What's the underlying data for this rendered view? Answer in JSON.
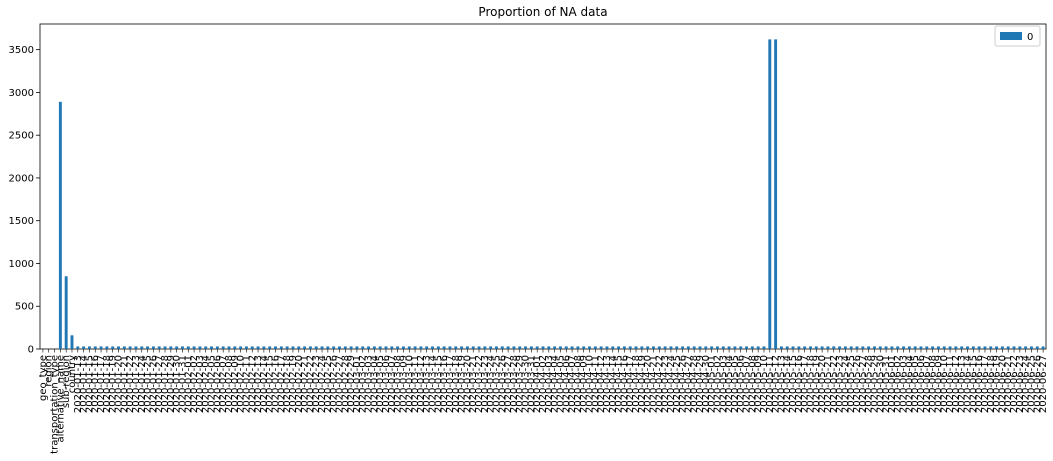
{
  "chart_data": {
    "type": "bar",
    "title": "Proportion of NA data",
    "xlabel": "",
    "ylabel": "",
    "ylim": [
      0,
      3800
    ],
    "yticks": [
      0,
      500,
      1000,
      1500,
      2000,
      2500,
      3000,
      3500
    ],
    "legend_position": "top-right",
    "grid": false,
    "bar_color": "#1f77b4",
    "series": [
      {
        "name": "0",
        "color": "#1f77b4"
      }
    ],
    "categories": [
      "geo_type",
      "region",
      "transportation_type",
      "alternative_name",
      "sub-region",
      "country",
      "2020-01-13",
      "2020-01-14",
      "2020-01-15",
      "2020-01-16",
      "2020-01-17",
      "2020-01-18",
      "2020-01-19",
      "2020-01-20",
      "2020-01-21",
      "2020-01-22",
      "2020-01-23",
      "2020-01-24",
      "2020-01-25",
      "2020-01-26",
      "2020-01-27",
      "2020-01-28",
      "2020-01-29",
      "2020-01-30",
      "2020-01-31",
      "2020-02-01",
      "2020-02-02",
      "2020-02-03",
      "2020-02-04",
      "2020-02-05",
      "2020-02-06",
      "2020-02-07",
      "2020-02-08",
      "2020-02-09",
      "2020-02-10",
      "2020-02-11",
      "2020-02-12",
      "2020-02-13",
      "2020-02-14",
      "2020-02-15",
      "2020-02-16",
      "2020-02-17",
      "2020-02-18",
      "2020-02-19",
      "2020-02-20",
      "2020-02-21",
      "2020-02-22",
      "2020-02-23",
      "2020-02-24",
      "2020-02-25",
      "2020-02-26",
      "2020-02-27",
      "2020-02-28",
      "2020-02-29",
      "2020-03-01",
      "2020-03-02",
      "2020-03-03",
      "2020-03-04",
      "2020-03-05",
      "2020-03-06",
      "2020-03-07",
      "2020-03-08",
      "2020-03-09",
      "2020-03-10",
      "2020-03-11",
      "2020-03-12",
      "2020-03-13",
      "2020-03-14",
      "2020-03-15",
      "2020-03-16",
      "2020-03-17",
      "2020-03-18",
      "2020-03-19",
      "2020-03-20",
      "2020-03-21",
      "2020-03-22",
      "2020-03-23",
      "2020-03-24",
      "2020-03-25",
      "2020-03-26",
      "2020-03-27",
      "2020-03-28",
      "2020-03-29",
      "2020-03-30",
      "2020-03-31",
      "2020-04-01",
      "2020-04-02",
      "2020-04-03",
      "2020-04-04",
      "2020-04-05",
      "2020-04-06",
      "2020-04-07",
      "2020-04-08",
      "2020-04-09",
      "2020-04-10",
      "2020-04-11",
      "2020-04-12",
      "2020-04-13",
      "2020-04-14",
      "2020-04-15",
      "2020-04-16",
      "2020-04-17",
      "2020-04-18",
      "2020-04-19",
      "2020-04-20",
      "2020-04-21",
      "2020-04-22",
      "2020-04-23",
      "2020-04-24",
      "2020-04-25",
      "2020-04-26",
      "2020-04-27",
      "2020-04-28",
      "2020-04-29",
      "2020-04-30",
      "2020-05-01",
      "2020-05-02",
      "2020-05-03",
      "2020-05-04",
      "2020-05-05",
      "2020-05-06",
      "2020-05-07",
      "2020-05-08",
      "2020-05-09",
      "2020-05-10",
      "2020-05-11",
      "2020-05-12",
      "2020-05-13",
      "2020-05-14",
      "2020-05-15",
      "2020-05-16",
      "2020-05-17",
      "2020-05-18",
      "2020-05-19",
      "2020-05-20",
      "2020-05-21",
      "2020-05-22",
      "2020-05-23",
      "2020-05-24",
      "2020-05-25",
      "2020-05-26",
      "2020-05-27",
      "2020-05-28",
      "2020-05-29",
      "2020-05-30",
      "2020-05-31",
      "2020-06-01",
      "2020-06-02",
      "2020-06-03",
      "2020-06-04",
      "2020-06-05",
      "2020-06-06",
      "2020-06-07",
      "2020-06-08",
      "2020-06-09",
      "2020-06-10",
      "2020-06-11",
      "2020-06-12",
      "2020-06-13",
      "2020-06-14",
      "2020-06-15",
      "2020-06-16",
      "2020-06-17",
      "2020-06-18",
      "2020-06-19",
      "2020-06-20",
      "2020-06-21",
      "2020-06-22",
      "2020-06-23",
      "2020-06-24",
      "2020-06-25",
      "2020-06-26",
      "2020-06-27"
    ],
    "values": [
      0,
      0,
      0,
      2890,
      850,
      160,
      30,
      30,
      30,
      30,
      30,
      30,
      30,
      30,
      30,
      30,
      30,
      30,
      30,
      30,
      30,
      30,
      30,
      30,
      30,
      30,
      30,
      30,
      30,
      30,
      30,
      30,
      30,
      30,
      30,
      30,
      30,
      30,
      30,
      30,
      30,
      30,
      30,
      30,
      30,
      30,
      30,
      30,
      30,
      30,
      30,
      30,
      30,
      30,
      30,
      30,
      30,
      30,
      30,
      30,
      30,
      30,
      30,
      30,
      30,
      30,
      30,
      30,
      30,
      30,
      30,
      30,
      30,
      30,
      30,
      30,
      30,
      30,
      30,
      30,
      30,
      30,
      30,
      30,
      30,
      30,
      30,
      30,
      30,
      30,
      30,
      30,
      30,
      30,
      30,
      30,
      30,
      30,
      30,
      30,
      30,
      30,
      30,
      30,
      30,
      30,
      30,
      30,
      30,
      30,
      30,
      30,
      30,
      30,
      30,
      30,
      30,
      30,
      30,
      30,
      30,
      30,
      30,
      30,
      30,
      3620,
      3620,
      30,
      30,
      30,
      30,
      30,
      30,
      30,
      30,
      30,
      30,
      30,
      30,
      30,
      30,
      30,
      30,
      30,
      30,
      30,
      30,
      30,
      30,
      30,
      30,
      30,
      30,
      30,
      30,
      30,
      30,
      30,
      30,
      30,
      30,
      30,
      30,
      30,
      30,
      30,
      30,
      30,
      30,
      30,
      30,
      30,
      30
    ]
  }
}
